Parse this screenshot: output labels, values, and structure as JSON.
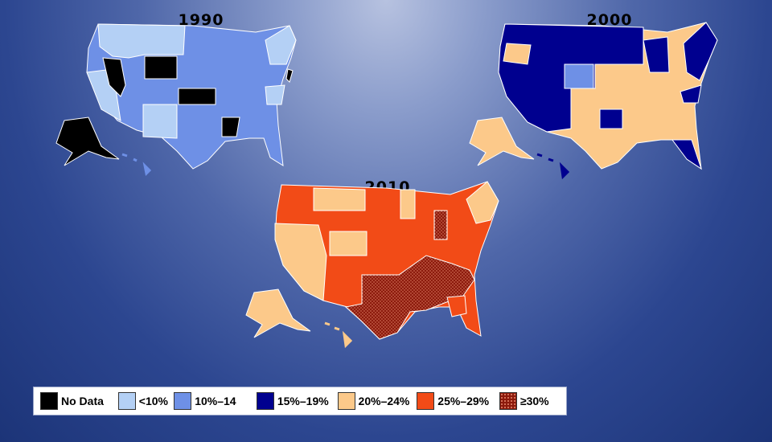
{
  "maps": [
    {
      "title": "1990"
    },
    {
      "title": "2000"
    },
    {
      "title": "2010"
    }
  ],
  "legend": [
    {
      "label": "No Data",
      "color": "#000000",
      "pattern": false
    },
    {
      "label": "<10%",
      "color": "#b4d0f5",
      "pattern": false
    },
    {
      "label": "10%–14",
      "color": "#6e90e6",
      "pattern": false
    },
    {
      "label": "15%–19%",
      "color": "#00008f",
      "pattern": false
    },
    {
      "label": "20%–24%",
      "color": "#fcc98a",
      "pattern": false
    },
    {
      "label": "25%–29%",
      "color": "#f24b17",
      "pattern": false
    },
    {
      "label": "≥30%",
      "color": "#8c1a0c",
      "pattern": true
    }
  ]
}
